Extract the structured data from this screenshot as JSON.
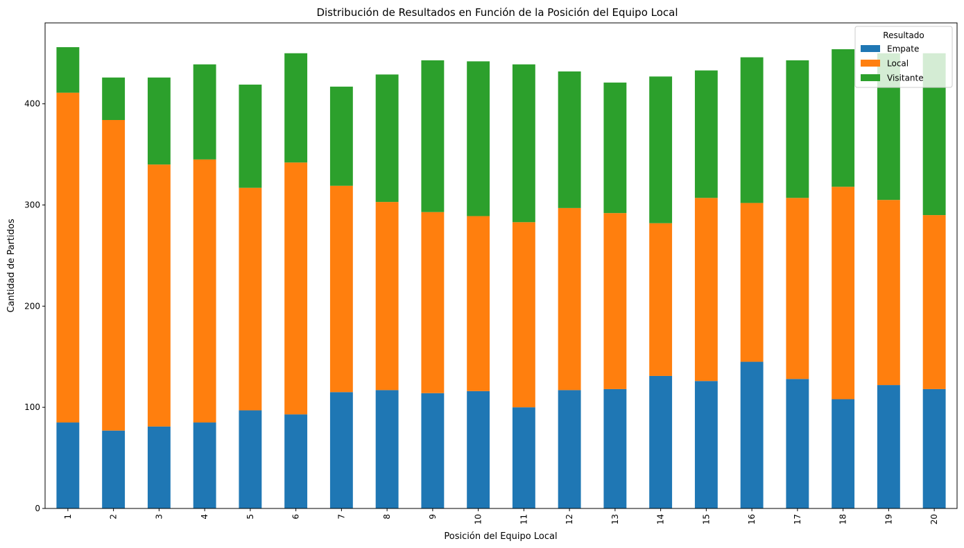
{
  "chart_data": {
    "type": "bar",
    "stacked": true,
    "title": "Distribución de Resultados en Función de la Posición del Equipo Local",
    "xlabel": "Posición del Equipo Local",
    "ylabel": "Cantidad de Partidos",
    "ylim": [
      0,
      480
    ],
    "yticks": [
      0,
      100,
      200,
      300,
      400
    ],
    "grid": false,
    "legend": {
      "title": "Resultado",
      "placement": "top-right"
    },
    "categories": [
      "1",
      "2",
      "3",
      "4",
      "5",
      "6",
      "7",
      "8",
      "9",
      "10",
      "11",
      "12",
      "13",
      "14",
      "15",
      "16",
      "17",
      "18",
      "19",
      "20"
    ],
    "series": [
      {
        "name": "Empate",
        "color": "#1f77b4",
        "values": [
          85,
          77,
          81,
          85,
          97,
          93,
          115,
          117,
          114,
          116,
          100,
          117,
          118,
          131,
          126,
          145,
          128,
          108,
          122,
          118
        ]
      },
      {
        "name": "Local",
        "color": "#ff7f0e",
        "values": [
          326,
          307,
          259,
          260,
          220,
          249,
          204,
          186,
          179,
          173,
          183,
          180,
          174,
          151,
          181,
          157,
          179,
          210,
          183,
          172
        ]
      },
      {
        "name": "Visitante",
        "color": "#2ca02c",
        "values": [
          45,
          42,
          86,
          94,
          102,
          108,
          98,
          126,
          150,
          153,
          156,
          135,
          129,
          145,
          126,
          144,
          136,
          136,
          145,
          160
        ]
      }
    ]
  }
}
